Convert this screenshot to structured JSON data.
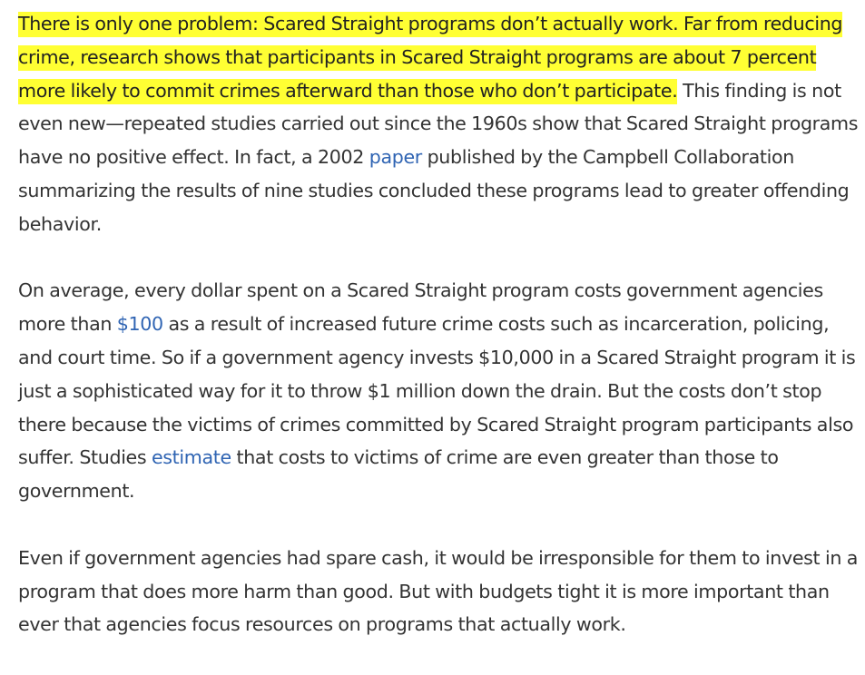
{
  "colors": {
    "text": "#333333",
    "highlight": "#ffff33",
    "link": "#2f64b3"
  },
  "paragraphs": [
    {
      "highlighted": "There is only one problem: Scared Straight programs don’t actually work. Far from reducing crime, research shows that participants in Scared Straight programs are about 7 percent more likely to commit crimes afterward than those who don’t participate.",
      "text_1": " This finding is not even new—repeated studies carried out since the 1960s show that Scared Straight programs have no positive effect. In fact, a 2002 ",
      "link": "paper",
      "text_2": " published by the Campbell Collaboration summarizing the results of nine studies concluded these programs lead to greater offending behavior."
    },
    {
      "text_1": "On average, every dollar spent on a Scared Straight program costs government agencies more than ",
      "link_1": "$100",
      "text_2": " as a result of increased future crime costs such as incarceration, policing, and court time. So if a government agency invests $10,000 in a Scared Straight program it is just a sophisticated way for it to throw $1 million down the drain. But the costs don’t stop there because the victims of crimes committed by Scared Straight program participants also suffer. Studies ",
      "link_2": "estimate",
      "text_3": " that costs to victims of crime are even greater than those to government."
    },
    {
      "text": "Even if government agencies had spare cash, it would be irresponsible for them to invest in a program that does more harm than good. But with budgets tight it is more important than ever that agencies focus resources on programs that actually work."
    }
  ]
}
